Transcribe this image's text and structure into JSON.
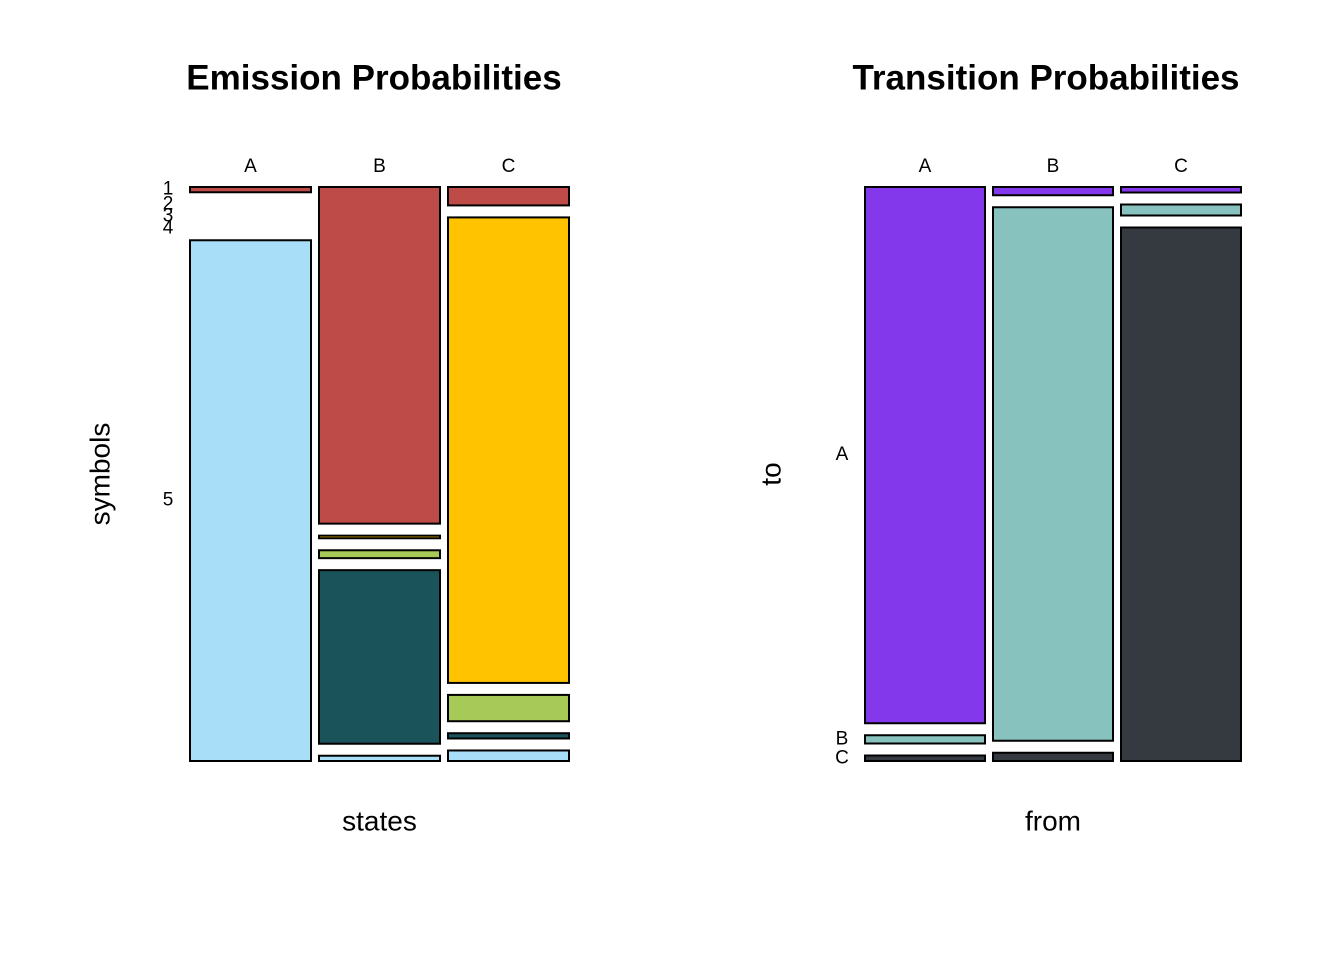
{
  "chart_data": [
    {
      "type": "mosaic",
      "title": "Emission Probabilities",
      "xlabel": "states",
      "ylabel": "symbols",
      "categories": [
        "A",
        "B",
        "C"
      ],
      "series": [
        {
          "name": "1",
          "color": "#be4b48",
          "values": [
            0.01,
            0.64,
            0.035
          ]
        },
        {
          "name": "2",
          "color": "#ffc300",
          "values": [
            0,
            0.005,
            0.885
          ]
        },
        {
          "name": "3",
          "color": "#a7c957",
          "values": [
            0,
            0.015,
            0.05
          ]
        },
        {
          "name": "4",
          "color": "#1b535b",
          "values": [
            0,
            0.33,
            0.01
          ]
        },
        {
          "name": "5",
          "color": "#a8def8",
          "values": [
            0.99,
            0.01,
            0.02
          ]
        }
      ]
    },
    {
      "type": "mosaic",
      "title": "Transition Probabilities",
      "xlabel": "from",
      "ylabel": "to",
      "categories": [
        "A",
        "B",
        "C"
      ],
      "series": [
        {
          "name": "A",
          "color": "#8338ec",
          "values": [
            0.975,
            0.015,
            0.01
          ]
        },
        {
          "name": "B",
          "color": "#88c2be",
          "values": [
            0.015,
            0.97,
            0.02
          ]
        },
        {
          "name": "C",
          "color": "#343a40",
          "values": [
            0.01,
            0.015,
            0.97
          ]
        }
      ]
    }
  ]
}
